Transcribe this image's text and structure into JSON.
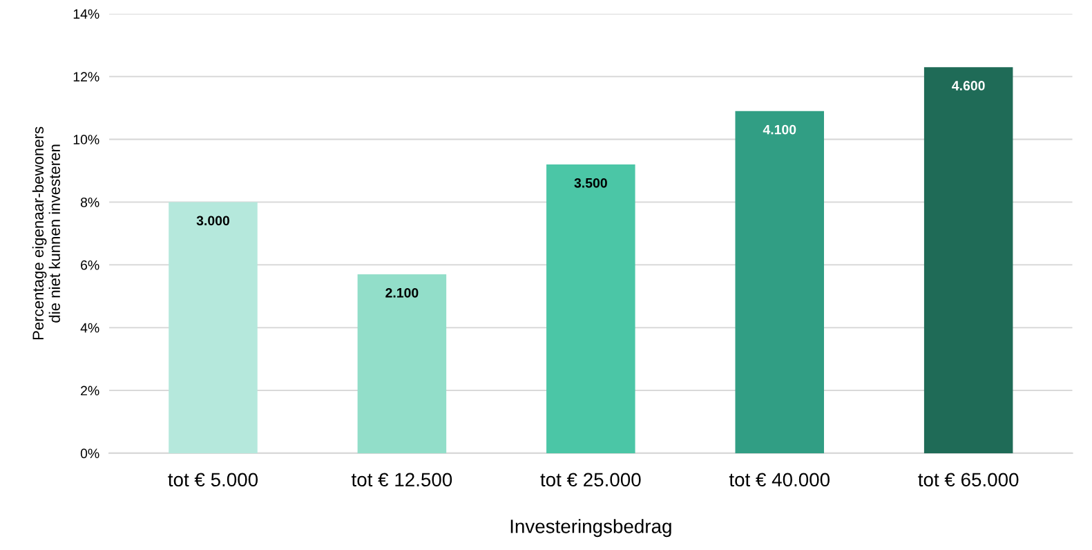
{
  "chart_data": {
    "type": "bar",
    "xlabel": "Investeringsbedrag",
    "ylabel": "Percentage eigenaar-bewoners\ndie niet kunnen investeren",
    "categories": [
      "tot € 5.000",
      "tot € 12.500",
      "tot € 25.000",
      "tot € 40.000",
      "tot € 65.000"
    ],
    "values": [
      8.0,
      5.7,
      9.2,
      10.9,
      12.3
    ],
    "colors": [
      "#b5e8dc",
      "#92dec9",
      "#4bc6a6",
      "#319e84",
      "#1f6b57"
    ],
    "annotations": [
      {
        "text": "3.000",
        "x": "tot € 5.000",
        "y": 8.0
      },
      {
        "text": "2.100",
        "x": "tot € 12.500",
        "y": 5.7
      },
      {
        "text": "3.500",
        "x": "tot € 25.000",
        "y": 9.2
      },
      {
        "text": "4.100",
        "x": "tot € 40.000",
        "y": 10.9
      },
      {
        "text": "4.600",
        "x": "tot € 65.000",
        "y": 12.3
      }
    ],
    "ylim": [
      0,
      14
    ],
    "yticks": [
      {
        "value": 0,
        "label": "0%"
      },
      {
        "value": 2,
        "label": "2%"
      },
      {
        "value": 4,
        "label": "4%"
      },
      {
        "value": 6,
        "label": "6%"
      },
      {
        "value": 8,
        "label": "8%"
      },
      {
        "value": 10,
        "label": "10%"
      },
      {
        "value": 12,
        "label": "12%"
      },
      {
        "value": 14,
        "label": "14%"
      }
    ],
    "grid": "y"
  }
}
